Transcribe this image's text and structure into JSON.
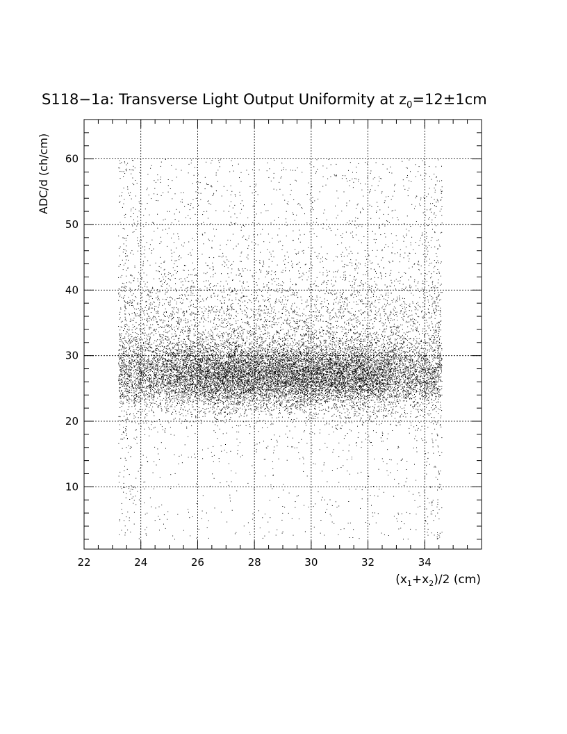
{
  "chart_data": {
    "type": "scatter",
    "title": "S118−1a: Transverse Light Output Uniformity at z",
    "title_sub": "0",
    "title_tail": "=12±1cm",
    "xlabel": "(x",
    "xlabel_sub1": "1",
    "xlabel_mid": "+x",
    "xlabel_sub2": "2",
    "xlabel_tail": ")/2 (cm)",
    "ylabel": "ADC/d (ch/cm)",
    "xlim": [
      22,
      36
    ],
    "ylim": [
      0.5,
      66
    ],
    "x_ticks": [
      22,
      24,
      26,
      28,
      30,
      32,
      34
    ],
    "y_ticks": [
      10,
      20,
      30,
      40,
      50,
      60
    ],
    "grid": true,
    "series": [
      {
        "x_range": [
          23.2,
          34.6
        ],
        "core_mean_y": 27,
        "core_sd_y": 2.5,
        "halo_mean_y": 32,
        "halo_sd_y": 6,
        "upper_tail_max_y": 60,
        "lower_tail_min_y": 2,
        "x_hotspots": [
          26.5,
          29,
          31.5
        ],
        "edge_columns_x": [
          23.4,
          34.4
        ],
        "point_count_approx": 19000
      }
    ]
  }
}
